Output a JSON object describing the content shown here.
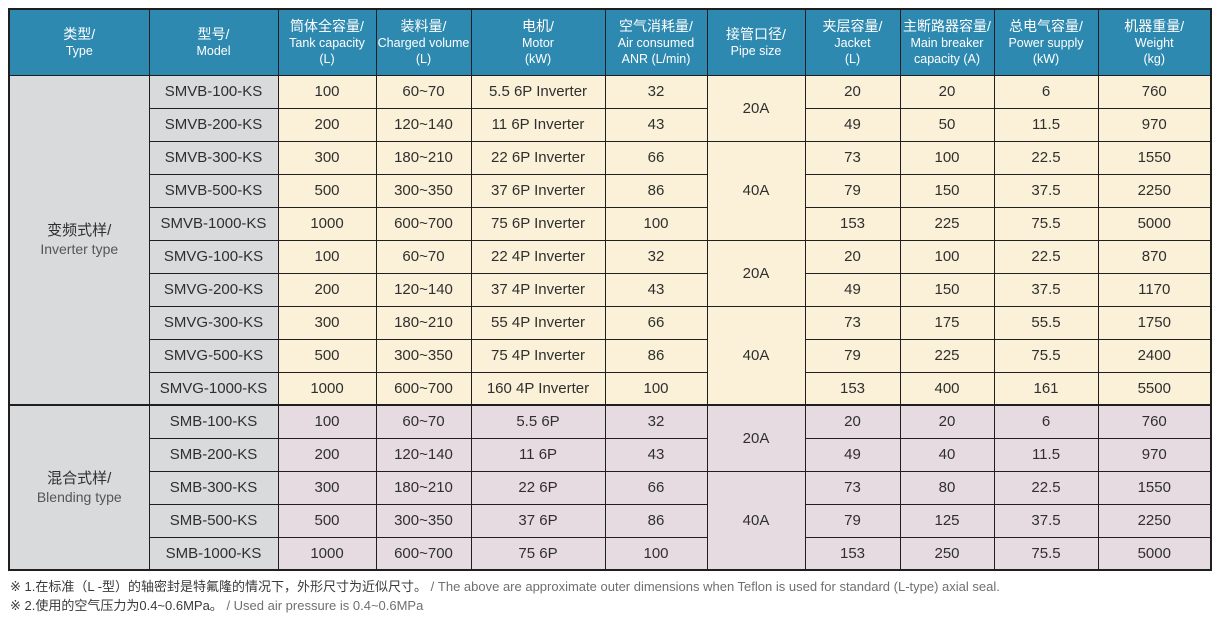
{
  "colors": {
    "header-bg": "#2e89b0",
    "gray": "#d9dadc",
    "cream": "#faf1d8",
    "pink": "#e7dbe2",
    "border": "#1f1f1f"
  },
  "table": {
    "columns": [
      {
        "zh": "类型/",
        "en": "Type",
        "unit": ""
      },
      {
        "zh": "型号/",
        "en": "Model",
        "unit": ""
      },
      {
        "zh": "筒体全容量/",
        "en": "Tank capacity",
        "unit": "(L)"
      },
      {
        "zh": "装料量/",
        "en": "Charged volume",
        "unit": "(L)"
      },
      {
        "zh": "电机/",
        "en": "Motor",
        "unit": "(kW)"
      },
      {
        "zh": "空气消耗量/",
        "en": "Air consumed",
        "unit": "ANR (L/min)"
      },
      {
        "zh": "接管口径/",
        "en": "Pipe size",
        "unit": ""
      },
      {
        "zh": "夹层容量/",
        "en": "Jacket",
        "unit": "(L)"
      },
      {
        "zh": "主断路器容量/",
        "en": "Main breaker",
        "unit": "capacity (A)"
      },
      {
        "zh": "总电气容量/",
        "en": "Power supply",
        "unit": "(kW)"
      },
      {
        "zh": "机器重量/",
        "en": "Weight",
        "unit": "(kg)"
      }
    ],
    "groups": [
      {
        "type_zh": "变频式样/",
        "type_en": "Inverter type",
        "rows": [
          {
            "model": "SMVB-100-KS",
            "tank": "100",
            "charged": "60~70",
            "motor": "5.5 6P Inverter",
            "air": "32",
            "pipe": {
              "label": "20A",
              "span": 2
            },
            "jacket": "20",
            "breaker": "20",
            "power": "6",
            "weight": "760"
          },
          {
            "model": "SMVB-200-KS",
            "tank": "200",
            "charged": "120~140",
            "motor": "11 6P Inverter",
            "air": "43",
            "pipe": null,
            "jacket": "49",
            "breaker": "50",
            "power": "11.5",
            "weight": "970"
          },
          {
            "model": "SMVB-300-KS",
            "tank": "300",
            "charged": "180~210",
            "motor": "22 6P Inverter",
            "air": "66",
            "pipe": {
              "label": "40A",
              "span": 3
            },
            "jacket": "73",
            "breaker": "100",
            "power": "22.5",
            "weight": "1550"
          },
          {
            "model": "SMVB-500-KS",
            "tank": "500",
            "charged": "300~350",
            "motor": "37 6P Inverter",
            "air": "86",
            "pipe": null,
            "jacket": "79",
            "breaker": "150",
            "power": "37.5",
            "weight": "2250"
          },
          {
            "model": "SMVB-1000-KS",
            "tank": "1000",
            "charged": "600~700",
            "motor": "75 6P Inverter",
            "air": "100",
            "pipe": null,
            "jacket": "153",
            "breaker": "225",
            "power": "75.5",
            "weight": "5000"
          },
          {
            "model": "SMVG-100-KS",
            "tank": "100",
            "charged": "60~70",
            "motor": "22 4P Inverter",
            "air": "32",
            "pipe": {
              "label": "20A",
              "span": 2
            },
            "jacket": "20",
            "breaker": "100",
            "power": "22.5",
            "weight": "870"
          },
          {
            "model": "SMVG-200-KS",
            "tank": "200",
            "charged": "120~140",
            "motor": "37 4P Inverter",
            "air": "43",
            "pipe": null,
            "jacket": "49",
            "breaker": "150",
            "power": "37.5",
            "weight": "1170"
          },
          {
            "model": "SMVG-300-KS",
            "tank": "300",
            "charged": "180~210",
            "motor": "55 4P Inverter",
            "air": "66",
            "pipe": {
              "label": "40A",
              "span": 3
            },
            "jacket": "73",
            "breaker": "175",
            "power": "55.5",
            "weight": "1750"
          },
          {
            "model": "SMVG-500-KS",
            "tank": "500",
            "charged": "300~350",
            "motor": "75 4P Inverter",
            "air": "86",
            "pipe": null,
            "jacket": "79",
            "breaker": "225",
            "power": "75.5",
            "weight": "2400"
          },
          {
            "model": "SMVG-1000-KS",
            "tank": "1000",
            "charged": "600~700",
            "motor": "160 4P Inverter",
            "air": "100",
            "pipe": null,
            "jacket": "153",
            "breaker": "400",
            "power": "161",
            "weight": "5500"
          }
        ]
      },
      {
        "type_zh": "混合式样/",
        "type_en": "Blending type",
        "rows": [
          {
            "model": "SMB-100-KS",
            "tank": "100",
            "charged": "60~70",
            "motor": "5.5 6P",
            "air": "32",
            "pipe": {
              "label": "20A",
              "span": 2
            },
            "jacket": "20",
            "breaker": "20",
            "power": "6",
            "weight": "760"
          },
          {
            "model": "SMB-200-KS",
            "tank": "200",
            "charged": "120~140",
            "motor": "11 6P",
            "air": "43",
            "pipe": null,
            "jacket": "49",
            "breaker": "40",
            "power": "11.5",
            "weight": "970"
          },
          {
            "model": "SMB-300-KS",
            "tank": "300",
            "charged": "180~210",
            "motor": "22 6P",
            "air": "66",
            "pipe": {
              "label": "40A",
              "span": 3
            },
            "jacket": "73",
            "breaker": "80",
            "power": "22.5",
            "weight": "1550"
          },
          {
            "model": "SMB-500-KS",
            "tank": "500",
            "charged": "300~350",
            "motor": "37 6P",
            "air": "86",
            "pipe": null,
            "jacket": "79",
            "breaker": "125",
            "power": "37.5",
            "weight": "2250"
          },
          {
            "model": "SMB-1000-KS",
            "tank": "1000",
            "charged": "600~700",
            "motor": "75 6P",
            "air": "100",
            "pipe": null,
            "jacket": "153",
            "breaker": "250",
            "power": "75.5",
            "weight": "5000"
          }
        ]
      }
    ]
  },
  "footnotes": [
    {
      "zh": "※ 1.在标准（L -型）的轴密封是特氟隆的情况下，外形尺寸为近似尺寸。",
      "en": "/ The above are approximate outer dimensions when Teflon is used for standard (L-type) axial seal."
    },
    {
      "zh": "※ 2.使用的空气压力为0.4~0.6MPa。",
      "en": "/ Used air pressure is 0.4~0.6MPa"
    }
  ]
}
